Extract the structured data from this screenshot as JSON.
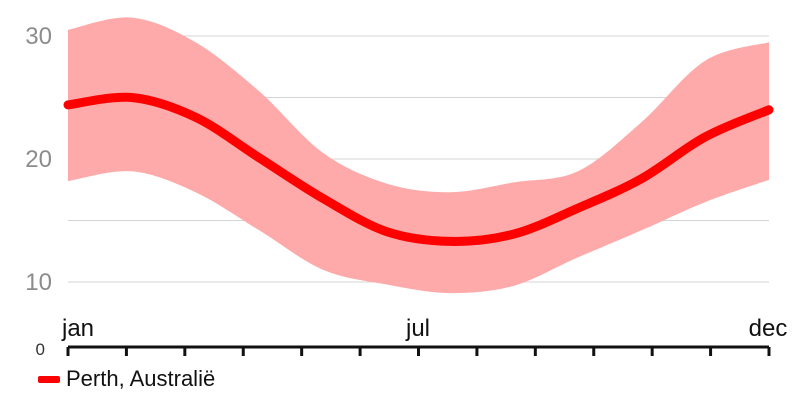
{
  "chart_data": {
    "type": "area",
    "title": "",
    "xlabel": "",
    "ylabel": "",
    "ylim": [
      0,
      30
    ],
    "y_ticks": [
      "30",
      "20",
      "10"
    ],
    "y_zero_label": "0",
    "x_tick_labels": [
      "jan",
      "jul",
      "dec"
    ],
    "x": [
      1,
      2,
      3,
      4,
      5,
      6,
      7,
      8,
      9,
      10,
      11,
      12
    ],
    "series": [
      {
        "name": "Perth, Australië",
        "mean": [
          24.4,
          25.0,
          23.4,
          20.1,
          16.8,
          14.1,
          13.3,
          13.9,
          16.0,
          18.4,
          21.8,
          24.0
        ],
        "max": [
          30.5,
          31.5,
          29.5,
          25.5,
          20.5,
          18.0,
          17.3,
          18.1,
          19.0,
          23.0,
          28.0,
          29.5
        ],
        "min": [
          18.2,
          19.0,
          17.3,
          14.2,
          11.0,
          9.8,
          9.1,
          9.7,
          12.0,
          14.2,
          16.5,
          18.3
        ],
        "color": "#ff0000",
        "band_color": "#ffaaaa"
      }
    ],
    "grid": true,
    "legend_position": "bottom-left"
  }
}
